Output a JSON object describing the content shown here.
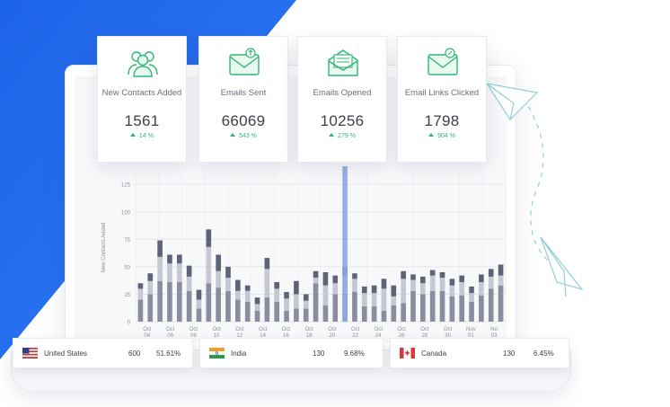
{
  "cards": [
    {
      "label": "New Contacts Added",
      "value": "1561",
      "change": "14 %",
      "icon": "people-icon"
    },
    {
      "label": "Emails Sent",
      "value": "66069",
      "change": "543 %",
      "icon": "envelope-send-icon"
    },
    {
      "label": "Emails Opened",
      "value": "10256",
      "change": "279 %",
      "icon": "envelope-open-icon"
    },
    {
      "label": "Email Links Clicked",
      "value": "1798",
      "change": "904 %",
      "icon": "envelope-link-icon"
    }
  ],
  "countries": [
    {
      "name": "United States",
      "count": "600",
      "percent": "51.61%",
      "flag": "us-flag-icon"
    },
    {
      "name": "India",
      "count": "130",
      "percent": "9.68%",
      "flag": "india-flag-icon"
    },
    {
      "name": "Canada",
      "count": "130",
      "percent": "6.45%",
      "flag": "canada-flag-icon"
    }
  ],
  "colors": {
    "accent_blue": "#2563eb",
    "green": "#2fb873",
    "bar_dark": "#8a8d9e",
    "bar_light": "#c5c7d2",
    "highlight_bar": "#8fa6e8"
  },
  "chart_data": {
    "type": "bar",
    "ylabel": "New Contacts Added",
    "yticks": [
      0,
      25,
      50,
      75,
      100,
      125
    ],
    "ylim": [
      0,
      135
    ],
    "x_ticks": [
      [
        "Oct",
        "04"
      ],
      [
        "Oct",
        "06"
      ],
      [
        "Oct",
        "08"
      ],
      [
        "Oct",
        "10"
      ],
      [
        "Oct",
        "12"
      ],
      [
        "Oct",
        "14"
      ],
      [
        "Oct",
        "16"
      ],
      [
        "Oct",
        "18"
      ],
      [
        "Oct",
        "20"
      ],
      [
        "Oct",
        "22"
      ],
      [
        "Oct",
        "24"
      ],
      [
        "Oct",
        "26"
      ],
      [
        "Oct",
        "28"
      ],
      [
        "Oct",
        "30"
      ],
      [
        "Nov",
        "01"
      ],
      [
        "No",
        "03"
      ]
    ],
    "grid": true,
    "series": [
      {
        "values": [
          20,
          25,
          37,
          36,
          36,
          28,
          12,
          35,
          31,
          28,
          20,
          18,
          10,
          22,
          18,
          10,
          12,
          12,
          35,
          15,
          25,
          25,
          27,
          14,
          14,
          10,
          15,
          17,
          28,
          25,
          28,
          28,
          23,
          24,
          18,
          24,
          30,
          33
        ]
      },
      {
        "values": [
          10,
          12,
          22,
          17,
          17,
          13,
          8,
          33,
          15,
          12,
          8,
          10,
          6,
          26,
          12,
          11,
          13,
          7,
          5,
          18,
          10,
          17,
          12,
          12,
          12,
          20,
          8,
          22,
          10,
          10,
          14,
          12,
          10,
          12,
          8,
          12,
          11,
          9
        ]
      },
      {
        "values": [
          5,
          7,
          15,
          8,
          8,
          10,
          9,
          16,
          15,
          10,
          10,
          5,
          6,
          10,
          6,
          6,
          12,
          6,
          6,
          12,
          7,
          8,
          5,
          6,
          7,
          9,
          10,
          7,
          5,
          6,
          5,
          5,
          6,
          6,
          6,
          7,
          7,
          10
        ]
      }
    ],
    "highlight": {
      "index": 21,
      "value": 175
    }
  }
}
